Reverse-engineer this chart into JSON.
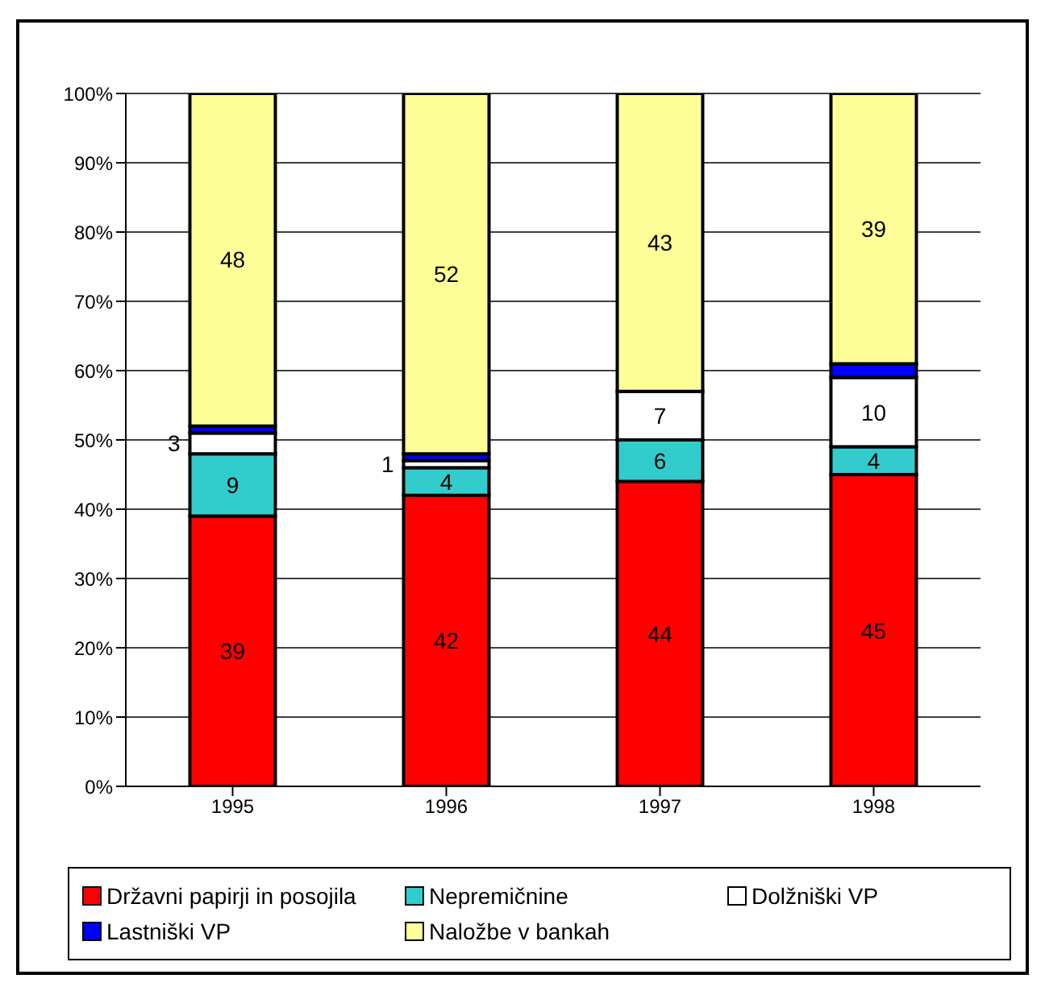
{
  "chart_data": {
    "type": "bar",
    "stacked": true,
    "categories": [
      "1995",
      "1996",
      "1997",
      "1998"
    ],
    "series": [
      {
        "name": "Državni papirji in posojila",
        "color": "#ff0000",
        "values": [
          39,
          42,
          44,
          45
        ],
        "value_labels": [
          "39",
          "42",
          "44",
          "45"
        ]
      },
      {
        "name": "Nepremičnine",
        "color": "#33cccc",
        "values": [
          9,
          4,
          6,
          4
        ],
        "value_labels": [
          "9",
          "4",
          "6",
          "4"
        ]
      },
      {
        "name": "Dolžniški VP",
        "color": "#ffffff",
        "values": [
          3,
          1,
          7,
          10
        ],
        "value_labels": [
          "3",
          "1",
          "7",
          "10"
        ]
      },
      {
        "name": "Lastniški VP",
        "color": "#0000ff",
        "values": [
          1,
          1,
          0,
          2
        ],
        "value_labels": [
          null,
          null,
          null,
          null
        ]
      },
      {
        "name": "Naložbe v bankah",
        "color": "#ffff99",
        "values": [
          48,
          52,
          43,
          39
        ],
        "value_labels": [
          "48",
          "52",
          "43",
          "39"
        ]
      }
    ],
    "ylim": [
      0,
      100
    ],
    "yticks": [
      {
        "value": 0,
        "label": "0%"
      },
      {
        "value": 10,
        "label": "10%"
      },
      {
        "value": 20,
        "label": "20%"
      },
      {
        "value": 30,
        "label": "30%"
      },
      {
        "value": 40,
        "label": "40%"
      },
      {
        "value": 50,
        "label": "50%"
      },
      {
        "value": 60,
        "label": "60%"
      },
      {
        "value": 70,
        "label": "70%"
      },
      {
        "value": 80,
        "label": "80%"
      },
      {
        "value": 90,
        "label": "90%"
      },
      {
        "value": 100,
        "label": "100%"
      }
    ],
    "grid": "y",
    "legend": "bottom"
  }
}
